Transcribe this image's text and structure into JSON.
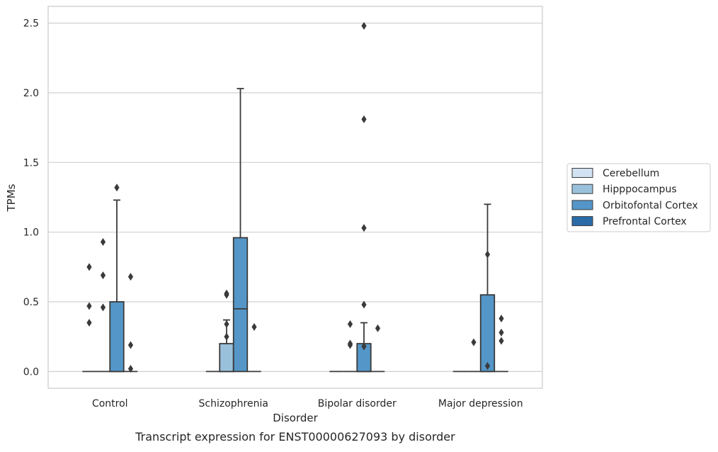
{
  "chart_data": {
    "type": "box",
    "caption": "Transcript expression for ENST00000627093 by disorder",
    "xlabel": "Disorder",
    "ylabel": "TPMs",
    "ylim": [
      -0.12,
      2.62
    ],
    "yticks": [
      0.0,
      0.5,
      1.0,
      1.5,
      2.0,
      2.5
    ],
    "ytick_labels": [
      "0.0",
      "0.5",
      "1.0",
      "1.5",
      "2.0",
      "2.5"
    ],
    "grid": "horizontal",
    "legend_position": "right",
    "categories": [
      "Control",
      "Schizophrenia",
      "Bipolar disorder",
      "Major depression"
    ],
    "series": [
      {
        "name": "Cerebellum",
        "color": "#d1e2f2",
        "boxes": [
          {
            "category": 0,
            "q1": 0,
            "median": 0,
            "q3": 0,
            "whisker_low": 0,
            "whisker_high": 0,
            "outliers": [
              0.35,
              0.47,
              0.75
            ]
          },
          {
            "category": 1,
            "q1": 0,
            "median": 0,
            "q3": 0,
            "whisker_low": 0,
            "whisker_high": 0,
            "outliers": []
          },
          {
            "category": 2,
            "q1": 0,
            "median": 0,
            "q3": 0,
            "whisker_low": 0,
            "whisker_high": 0,
            "outliers": []
          },
          {
            "category": 3,
            "q1": 0,
            "median": 0,
            "q3": 0,
            "whisker_low": 0,
            "whisker_high": 0,
            "outliers": []
          }
        ]
      },
      {
        "name": "Hipppocampus",
        "color": "#9ac1dc",
        "boxes": [
          {
            "category": 0,
            "q1": 0,
            "median": 0,
            "q3": 0,
            "whisker_low": 0,
            "whisker_high": 0,
            "outliers": [
              0.46,
              0.69,
              0.93
            ]
          },
          {
            "category": 1,
            "q1": 0,
            "median": 0,
            "q3": 0.2,
            "whisker_low": 0,
            "whisker_high": 0.37,
            "outliers": [
              0.25,
              0.34,
              0.55,
              0.56
            ]
          },
          {
            "category": 2,
            "q1": 0,
            "median": 0,
            "q3": 0,
            "whisker_low": 0,
            "whisker_high": 0,
            "outliers": [
              0.19,
              0.2,
              0.34
            ]
          },
          {
            "category": 3,
            "q1": 0,
            "median": 0,
            "q3": 0,
            "whisker_low": 0,
            "whisker_high": 0,
            "outliers": [
              0.21
            ]
          }
        ]
      },
      {
        "name": "Orbitofontal Cortex",
        "color": "#5496c8",
        "boxes": [
          {
            "category": 0,
            "q1": 0,
            "median": 0,
            "q3": 0.5,
            "whisker_low": 0,
            "whisker_high": 1.23,
            "outliers": [
              1.32
            ]
          },
          {
            "category": 1,
            "q1": 0,
            "median": 0.45,
            "q3": 0.96,
            "whisker_low": 0,
            "whisker_high": 2.03,
            "outliers": []
          },
          {
            "category": 2,
            "q1": 0,
            "median": 0,
            "q3": 0.2,
            "whisker_low": 0,
            "whisker_high": 0.35,
            "outliers": [
              0.18,
              0.48,
              1.03,
              1.81,
              2.48
            ]
          },
          {
            "category": 3,
            "q1": 0,
            "median": 0,
            "q3": 0.55,
            "whisker_low": 0,
            "whisker_high": 1.2,
            "outliers": [
              0.04,
              0.84
            ]
          }
        ]
      },
      {
        "name": "Prefrontal Cortex",
        "color": "#2b6ba8",
        "boxes": [
          {
            "category": 0,
            "q1": 0,
            "median": 0,
            "q3": 0,
            "whisker_low": 0,
            "whisker_high": 0,
            "outliers": [
              0.02,
              0.19,
              0.68
            ]
          },
          {
            "category": 1,
            "q1": 0,
            "median": 0,
            "q3": 0,
            "whisker_low": 0,
            "whisker_high": 0,
            "outliers": [
              0.32
            ]
          },
          {
            "category": 2,
            "q1": 0,
            "median": 0,
            "q3": 0,
            "whisker_low": 0,
            "whisker_high": 0,
            "outliers": [
              0.31
            ]
          },
          {
            "category": 3,
            "q1": 0,
            "median": 0,
            "q3": 0,
            "whisker_low": 0,
            "whisker_high": 0,
            "outliers": [
              0.22,
              0.28,
              0.38
            ]
          }
        ]
      }
    ]
  }
}
